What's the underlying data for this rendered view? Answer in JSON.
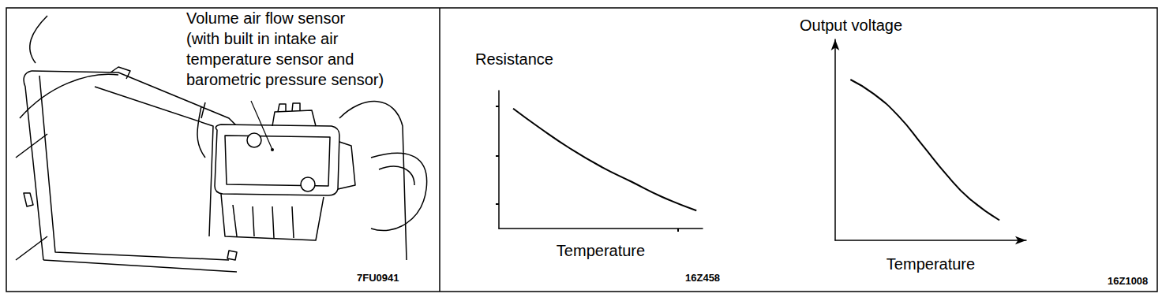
{
  "figure": {
    "label_lines": [
      "Volume air flow sensor",
      "(with built in intake air",
      "temperature sensor and",
      "barometric pressure sensor)"
    ],
    "annotation": "7FU0941"
  },
  "chart_data": [
    {
      "type": "line",
      "y_label": "Resistance",
      "x_label": "Temperature",
      "annotation": "16Z458",
      "x": [
        7,
        20,
        35,
        50,
        65,
        80,
        97
      ],
      "values": [
        87,
        73,
        58,
        45,
        34,
        23,
        13
      ],
      "color": "#000000",
      "xlim": [
        0,
        100
      ],
      "ylim": [
        0,
        100
      ],
      "xticks": [
        88
      ],
      "yticks": [
        18,
        53,
        89
      ],
      "grid": false,
      "tick_labels": false
    },
    {
      "type": "line",
      "y_label": "Output voltage",
      "x_label": "Temperature",
      "annotation": "16Z1008",
      "x": [
        8,
        20,
        33,
        46,
        58,
        70,
        86
      ],
      "values": [
        80,
        73,
        62,
        47,
        33,
        21,
        10
      ],
      "color": "#000000",
      "xlim": [
        0,
        100
      ],
      "ylim": [
        0,
        100
      ],
      "xticks": [],
      "yticks": [],
      "grid": false,
      "tick_labels": false
    }
  ]
}
